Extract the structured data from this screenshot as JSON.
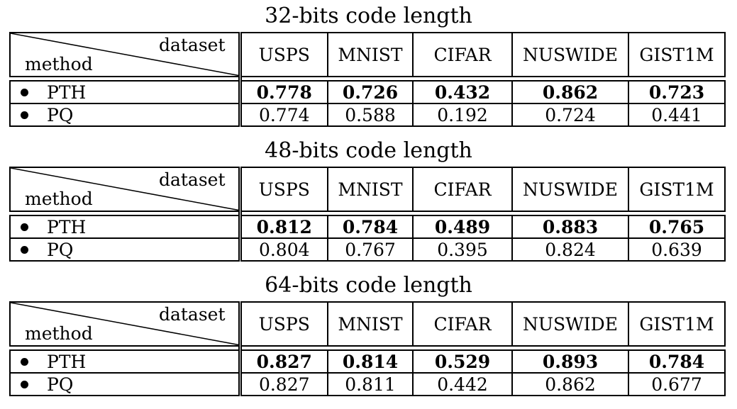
{
  "corner": {
    "dataset_label": "dataset",
    "method_label": "method"
  },
  "columns": [
    "USPS",
    "MNIST",
    "CIFAR",
    "NUSWIDE",
    "GIST1M"
  ],
  "sections": [
    {
      "title": "32-bits code length",
      "rows": [
        {
          "method": "PTH",
          "values": [
            "0.778",
            "0.726",
            "0.432",
            "0.862",
            "0.723"
          ],
          "bold": true
        },
        {
          "method": "PQ",
          "values": [
            "0.774",
            "0.588",
            "0.192",
            "0.724",
            "0.441"
          ],
          "bold": false
        }
      ]
    },
    {
      "title": "48-bits code length",
      "rows": [
        {
          "method": "PTH",
          "values": [
            "0.812",
            "0.784",
            "0.489",
            "0.883",
            "0.765"
          ],
          "bold": true
        },
        {
          "method": "PQ",
          "values": [
            "0.804",
            "0.767",
            "0.395",
            "0.824",
            "0.639"
          ],
          "bold": false
        }
      ]
    },
    {
      "title": "64-bits code length",
      "rows": [
        {
          "method": "PTH",
          "values": [
            "0.827",
            "0.814",
            "0.529",
            "0.893",
            "0.784"
          ],
          "bold": true
        },
        {
          "method": "PQ",
          "values": [
            "0.827",
            "0.811",
            "0.442",
            "0.862",
            "0.677"
          ],
          "bold": false
        }
      ]
    }
  ]
}
